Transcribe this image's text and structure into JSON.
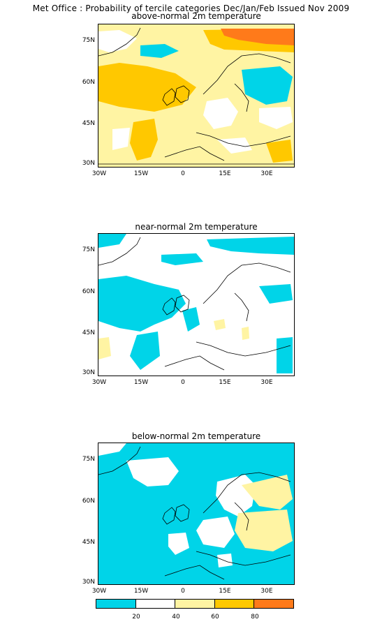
{
  "figure": {
    "title": "Met Office : Probability of tercile categories Dec/Jan/Feb Issued Nov 2009"
  },
  "panels": [
    {
      "title": "above-normal 2m temperature"
    },
    {
      "title": "near-normal 2m temperature"
    },
    {
      "title": "below-normal 2m temperature"
    }
  ],
  "axes": {
    "x_ticks": [
      "30W",
      "15W",
      "0",
      "15E",
      "30E"
    ],
    "y_ticks": [
      "75N",
      "60N",
      "45N",
      "30N"
    ],
    "lon_range": [
      -30,
      40
    ],
    "lat_range": [
      30,
      81
    ]
  },
  "colorbar": {
    "colors": [
      "#00d4e8",
      "#ffffff",
      "#fff4a3",
      "#ffc800",
      "#ff7a1a"
    ],
    "labels": [
      "20",
      "40",
      "60",
      "80"
    ]
  }
}
